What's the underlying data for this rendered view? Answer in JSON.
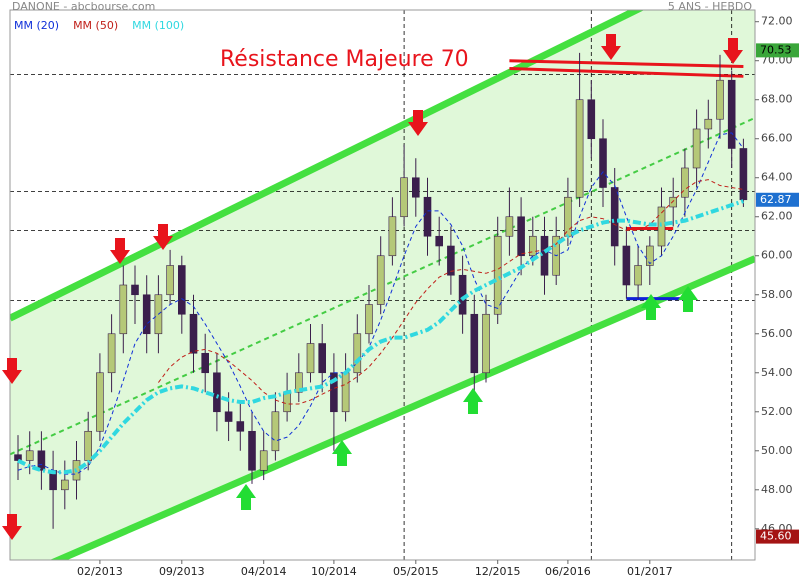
{
  "chart_data": {
    "type": "candlestick",
    "title": "DANONE - abcbourse.com",
    "subtitle": "5 ANS - HEBDO",
    "annotation": "Résistance Majeure 70",
    "annotation_color": "#e8141c",
    "x": [
      "07/2012",
      "08/2012",
      "09/2012",
      "10/2012",
      "11/2012",
      "12/2012",
      "01/2013",
      "02/2013",
      "03/2013",
      "04/2013",
      "05/2013",
      "06/2013",
      "07/2013",
      "08/2013",
      "09/2013",
      "10/2013",
      "11/2013",
      "12/2013",
      "01/2014",
      "02/2014",
      "03/2014",
      "04/2014",
      "05/2014",
      "06/2014",
      "07/2014",
      "08/2014",
      "09/2014",
      "10/2014",
      "11/2014",
      "12/2014",
      "01/2015",
      "02/2015",
      "03/2015",
      "04/2015",
      "05/2015",
      "06/2015",
      "07/2015",
      "08/2015",
      "09/2015",
      "10/2015",
      "11/2015",
      "12/2015",
      "01/2016",
      "02/2016",
      "03/2016",
      "04/2016",
      "05/2016",
      "06/2016",
      "07/2016",
      "08/2016",
      "09/2016",
      "10/2016",
      "11/2016",
      "12/2016",
      "01/2017",
      "02/2017",
      "03/2017",
      "04/2017",
      "05/2017",
      "06/2017",
      "07/2017",
      "08/2017",
      "09/2017"
    ],
    "open": [
      49.8,
      49.5,
      50,
      49,
      48,
      48.5,
      49.5,
      51,
      54,
      56,
      58.5,
      58,
      56,
      58,
      59.5,
      57,
      55,
      54,
      52,
      51.5,
      51,
      49,
      50,
      52,
      53,
      54,
      55.5,
      54,
      52,
      54,
      56,
      57.5,
      60,
      62,
      64,
      63,
      61,
      60.5,
      59,
      57,
      54,
      57,
      61,
      62,
      60,
      61,
      59,
      61,
      63,
      68,
      66,
      63.5,
      60.5,
      58.5,
      59.5,
      60.5,
      62.5,
      63,
      64.5,
      66.5,
      67,
      69,
      65.5
    ],
    "high": [
      50.8,
      51,
      51,
      50,
      49.5,
      50.5,
      52,
      55,
      57,
      59.5,
      59.5,
      59,
      59,
      60.3,
      60,
      58,
      56,
      55,
      53,
      52.5,
      52,
      51,
      53,
      54,
      55,
      56.5,
      56.5,
      55,
      55,
      57,
      58.5,
      61,
      63,
      65.7,
      65,
      64,
      62,
      61.5,
      60,
      58,
      58,
      62,
      63.5,
      63,
      62,
      62,
      62,
      64,
      70.4,
      69,
      67,
      64.5,
      61.5,
      60.5,
      61,
      63.5,
      64,
      65.5,
      67.5,
      68,
      70.3,
      69.5,
      66
    ],
    "low": [
      48.5,
      48.8,
      48,
      46,
      47,
      47.5,
      49,
      50.5,
      53,
      55,
      56.5,
      55,
      55,
      57.5,
      56,
      54,
      53,
      51,
      50.5,
      50,
      48.3,
      48.5,
      49.5,
      51.5,
      52.5,
      53.5,
      53,
      50,
      51.5,
      53.5,
      55.5,
      57,
      59.5,
      61.5,
      62,
      60,
      59.5,
      58,
      56,
      53,
      53.5,
      56.5,
      60,
      59,
      59.5,
      58,
      58.5,
      60.5,
      62.5,
      65,
      62.5,
      59.5,
      57.8,
      57.8,
      58.5,
      60,
      61.5,
      62,
      63.5,
      65.5,
      66,
      64.5,
      62.5
    ],
    "close": [
      49.5,
      50,
      49,
      48,
      48.5,
      49.5,
      51,
      54,
      56,
      58.5,
      58,
      56,
      58,
      59.5,
      57,
      55,
      54,
      52,
      51.5,
      51,
      49,
      50,
      52,
      53,
      54,
      55.5,
      54,
      52,
      54,
      56,
      57.5,
      60,
      62,
      64,
      63,
      61,
      60.5,
      59,
      57,
      54,
      57,
      61,
      62,
      60,
      61,
      59,
      61,
      63,
      68,
      66,
      63.5,
      60.5,
      58.5,
      59.5,
      60.5,
      62.5,
      63,
      64.5,
      66.5,
      67,
      69,
      65.5,
      62.87
    ],
    "up_color": "#b5c878",
    "down_color": "#3b1f4c",
    "series": [
      {
        "name": "MM (20)",
        "color": "#1030d8",
        "style": "dashed",
        "values": [
          49,
          49.2,
          49.3,
          49,
          48.8,
          48.8,
          49.2,
          50.2,
          51.8,
          53.6,
          55.5,
          56.5,
          57,
          57.5,
          57.8,
          57.4,
          56.5,
          55.5,
          54.5,
          53.3,
          52,
          51,
          50.5,
          50.7,
          51.3,
          52.3,
          53.5,
          54,
          54,
          54.5,
          55.3,
          56.7,
          58.3,
          60,
          61.5,
          62.3,
          62.3,
          61.6,
          60.5,
          58.8,
          57.5,
          57.3,
          58.3,
          59.3,
          60,
          60.3,
          60,
          60.3,
          62,
          63.5,
          64.3,
          63.6,
          62,
          60.5,
          59.6,
          60,
          61,
          62.2,
          63.4,
          64.8,
          66.2,
          66.3,
          65.5
        ]
      },
      {
        "name": "MM (50)",
        "color": "#c0201a",
        "style": "dashed",
        "values": [
          null,
          null,
          null,
          null,
          null,
          null,
          null,
          null,
          null,
          null,
          null,
          null,
          53.5,
          54.3,
          54.8,
          55.1,
          55.2,
          55,
          54.6,
          54.1,
          53.6,
          53,
          52.6,
          52.4,
          52.4,
          52.6,
          52.9,
          53.2,
          53.4,
          53.8,
          54.3,
          55,
          55.8,
          56.7,
          57.6,
          58.3,
          58.9,
          59.2,
          59.3,
          59.2,
          59.1,
          59.3,
          59.7,
          60.1,
          60.2,
          60.3,
          60.6,
          61.3,
          61.8,
          62,
          61.9,
          61.6,
          61.3,
          61.3,
          61.6,
          62.2,
          62.8,
          63.4,
          63.8,
          63.9,
          63.6,
          63.5,
          63.4
        ]
      },
      {
        "name": "MM (100)",
        "color": "#30d8e0",
        "style": "dashdot",
        "values": [
          49.5,
          49.2,
          49,
          48.9,
          48.9,
          49,
          49.4,
          50,
          50.7,
          51.4,
          52,
          52.6,
          53,
          53.2,
          53.3,
          53.2,
          53,
          52.8,
          52.6,
          52.5,
          52.5,
          52.7,
          52.8,
          53,
          53.1,
          53.2,
          53.3,
          53.6,
          54,
          54.6,
          55.2,
          55.6,
          55.8,
          55.8,
          56,
          56.2,
          56.6,
          57.2,
          57.8,
          58.2,
          58.5,
          58.8,
          59.1,
          59.4,
          59.8,
          60.2,
          60.6,
          61,
          61.3,
          61.5,
          61.7,
          61.8,
          61.8,
          61.7,
          61.6,
          61.6,
          61.7,
          61.8,
          62,
          62.2,
          62.4,
          62.6,
          62.8
        ]
      }
    ],
    "ylim": [
      44.4,
      72.6
    ],
    "yticks": [
      {
        "value": 46,
        "label": "46.00"
      },
      {
        "value": 48,
        "label": "48.00"
      },
      {
        "value": 50,
        "label": "50.00"
      },
      {
        "value": 52,
        "label": "52.00"
      },
      {
        "value": 54,
        "label": "54.00"
      },
      {
        "value": 56,
        "label": "56.00"
      },
      {
        "value": 58,
        "label": "58.00"
      },
      {
        "value": 60,
        "label": "60.00"
      },
      {
        "value": 62,
        "label": "62.00"
      },
      {
        "value": 64,
        "label": "64.00"
      },
      {
        "value": 66,
        "label": "66.00"
      },
      {
        "value": 68,
        "label": "68.00"
      },
      {
        "value": 70,
        "label": "70.00"
      },
      {
        "value": 72,
        "label": "72.00"
      }
    ],
    "xticks": [
      "02/2013",
      "09/2013",
      "04/2014",
      "10/2014",
      "05/2015",
      "12/2015",
      "06/2016",
      "01/2017"
    ],
    "grid": false,
    "levels": [
      69.3,
      63.3,
      61.3,
      57.7
    ],
    "vlines": [
      "04/2015",
      "08/2016",
      "08/2017"
    ],
    "channel_fill": "#d8f6d0",
    "trendlines": [
      {
        "from": [
          "07/2012",
          57.0
        ],
        "to": [
          "09/2017",
          75.3
        ],
        "color": "#44e040",
        "style": "thick",
        "extend": true
      },
      {
        "from": [
          "07/2012",
          43.5
        ],
        "to": [
          "09/2017",
          59.6
        ],
        "color": "#44e040",
        "style": "thick",
        "extend": true
      },
      {
        "from": [
          "07/2012",
          50.0
        ],
        "to": [
          "09/2017",
          66.8
        ],
        "color": "#44cc44",
        "style": "dashed",
        "extend": true
      },
      {
        "from": [
          "01/2016",
          70.0
        ],
        "to": [
          "09/2017",
          69.7
        ],
        "color": "#e8141c",
        "style": "medium",
        "extend": false
      },
      {
        "from": [
          "01/2016",
          69.6
        ],
        "to": [
          "09/2017",
          69.2
        ],
        "color": "#e8141c",
        "style": "medium",
        "extend": false
      },
      {
        "from": [
          "11/2016",
          61.4
        ],
        "to": [
          "03/2017",
          61.4
        ],
        "color": "#e8141c",
        "style": "medium",
        "extend": false
      },
      {
        "from": [
          "11/2016",
          57.8
        ],
        "to": [
          "04/2017",
          57.8
        ],
        "color": "#1020d8",
        "style": "medium",
        "extend": false
      }
    ],
    "price_tags": [
      {
        "value": 70.53,
        "color": "#3aa63a",
        "text_color": "#000000"
      },
      {
        "value": 62.87,
        "color": "#1e70d0",
        "text_color": "#ffffff"
      },
      {
        "value": 45.6,
        "label": "45.60",
        "color": "#a41414",
        "text_color": "#ffffff"
      }
    ]
  }
}
